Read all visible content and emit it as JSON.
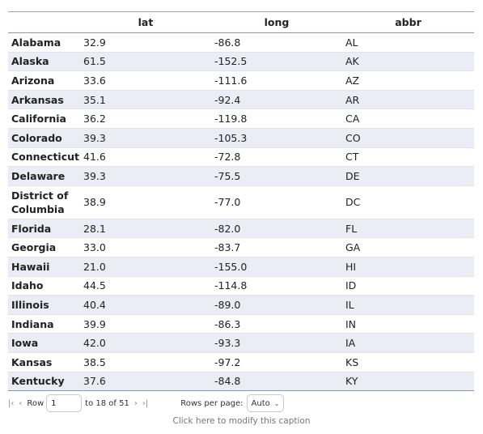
{
  "table": {
    "headers": {
      "state": "",
      "lat": "lat",
      "long": "long",
      "abbr": "abbr"
    },
    "rows": [
      {
        "state": "Alabama",
        "lat": "32.9",
        "long": "-86.8",
        "abbr": "AL"
      },
      {
        "state": "Alaska",
        "lat": "61.5",
        "long": "-152.5",
        "abbr": "AK"
      },
      {
        "state": "Arizona",
        "lat": "33.6",
        "long": "-111.6",
        "abbr": "AZ"
      },
      {
        "state": "Arkansas",
        "lat": "35.1",
        "long": "-92.4",
        "abbr": "AR"
      },
      {
        "state": "California",
        "lat": "36.2",
        "long": "-119.8",
        "abbr": "CA"
      },
      {
        "state": "Colorado",
        "lat": "39.3",
        "long": "-105.3",
        "abbr": "CO"
      },
      {
        "state": "Connecticut",
        "lat": "41.6",
        "long": "-72.8",
        "abbr": "CT"
      },
      {
        "state": "Delaware",
        "lat": "39.3",
        "long": "-75.5",
        "abbr": "DE"
      },
      {
        "state": "District of Columbia",
        "lat": "38.9",
        "long": "-77.0",
        "abbr": "DC"
      },
      {
        "state": "Florida",
        "lat": "28.1",
        "long": "-82.0",
        "abbr": "FL"
      },
      {
        "state": "Georgia",
        "lat": "33.0",
        "long": "-83.7",
        "abbr": "GA"
      },
      {
        "state": "Hawaii",
        "lat": "21.0",
        "long": "-155.0",
        "abbr": "HI"
      },
      {
        "state": "Idaho",
        "lat": "44.5",
        "long": "-114.8",
        "abbr": "ID"
      },
      {
        "state": "Illinois",
        "lat": "40.4",
        "long": "-89.0",
        "abbr": "IL"
      },
      {
        "state": "Indiana",
        "lat": "39.9",
        "long": "-86.3",
        "abbr": "IN"
      },
      {
        "state": "Iowa",
        "lat": "42.0",
        "long": "-93.3",
        "abbr": "IA"
      },
      {
        "state": "Kansas",
        "lat": "38.5",
        "long": "-97.2",
        "abbr": "KS"
      },
      {
        "state": "Kentucky",
        "lat": "37.6",
        "long": "-84.8",
        "abbr": "KY"
      }
    ]
  },
  "pager": {
    "icons": {
      "first": "first-page-icon",
      "prev": "previous-page-icon",
      "next": "next-page-icon",
      "last": "last-page-icon"
    },
    "row_label": "Row",
    "row_value": "1",
    "range_text": "to 18 of 51",
    "rows_per_page_label": "Rows per page:",
    "rows_per_page_value": "Auto"
  },
  "caption": "Click here to modify this caption"
}
